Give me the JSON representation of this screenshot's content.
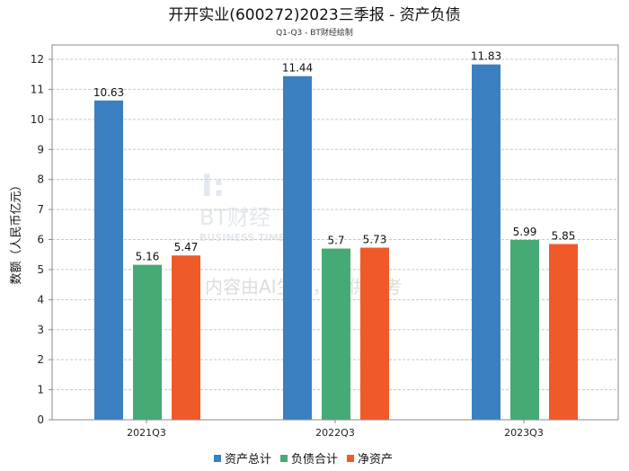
{
  "chart_data": {
    "type": "bar",
    "title": "开开实业(600272)2023三季报 - 资产负债",
    "subtitle": "Q1-Q3 - BT财经绘制",
    "xlabel": "",
    "ylabel": "数额（人民币亿元）",
    "ylim": [
      0,
      12
    ],
    "yticks": [
      "0",
      "1",
      "2",
      "3",
      "4",
      "5",
      "6",
      "7",
      "8",
      "9",
      "10",
      "11",
      "12"
    ],
    "grid": true,
    "legend_position": "bottom",
    "categories": [
      "2021Q3",
      "2022Q3",
      "2023Q3"
    ],
    "series": [
      {
        "name": "资产总计",
        "color": "#3a80c0",
        "values": [
          10.63,
          11.44,
          11.83
        ],
        "labels": [
          "10.63",
          "11.44",
          "11.83"
        ]
      },
      {
        "name": "负债合计",
        "color": "#46aa76",
        "values": [
          5.16,
          5.7,
          5.99
        ],
        "labels": [
          "5.16",
          "5.7",
          "5.99"
        ]
      },
      {
        "name": "净资产",
        "color": "#f05a28",
        "values": [
          5.47,
          5.73,
          5.85
        ],
        "labels": [
          "5.47",
          "5.73",
          "5.85"
        ]
      }
    ]
  },
  "watermark": {
    "brand": "BT财经",
    "brand_en": "BUSINESS TIMES",
    "notice": "内容由AI生成，仅供参考"
  }
}
